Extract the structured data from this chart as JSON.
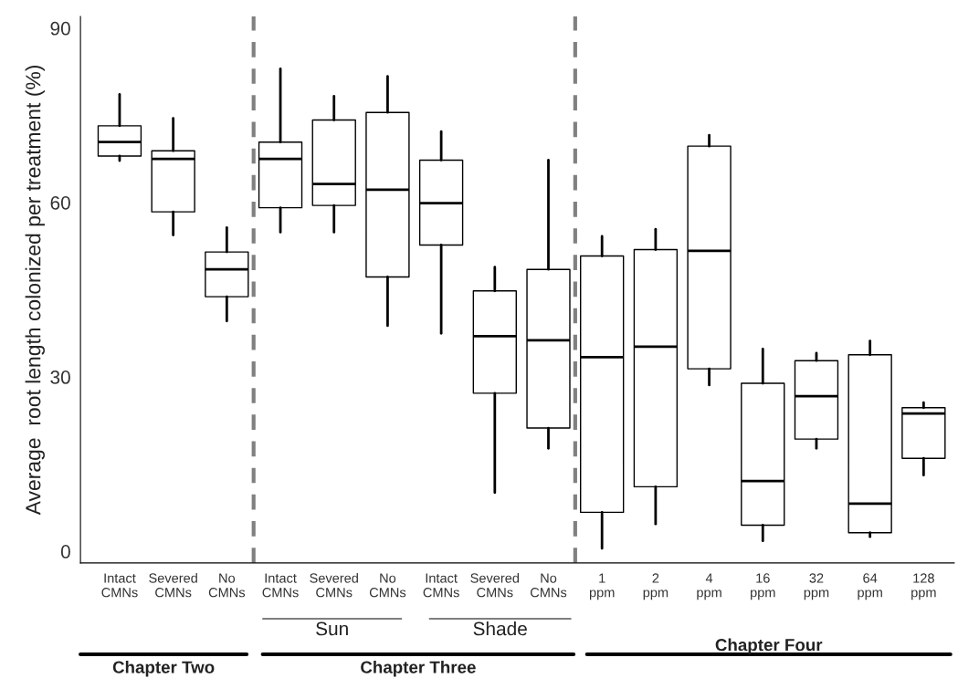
{
  "chart_data": {
    "type": "box",
    "ylabel": "Average  root length colonized per treatment (%)",
    "categories": [
      "Intact\nCMNs",
      "Severed\nCMNs",
      "No\nCMNs",
      "Intact\nCMNs",
      "Severed\nCMNs",
      "No\nCMNs",
      "Intact\nCMNs",
      "Severed\nCMNs",
      "No\nCMNs",
      "1\nppm",
      "2\nppm",
      "4\nppm",
      "16\nppm",
      "32\nppm",
      "64\nppm",
      "128\nppm"
    ],
    "boxes": [
      {
        "low": 67.2,
        "q1": 68.0,
        "median": 70.4,
        "q3": 73.2,
        "high": 78.6
      },
      {
        "low": 54.4,
        "q1": 58.4,
        "median": 67.5,
        "q3": 68.9,
        "high": 74.5
      },
      {
        "low": 39.6,
        "q1": 43.8,
        "median": 48.5,
        "q3": 51.5,
        "high": 55.7
      },
      {
        "low": 54.9,
        "q1": 59.1,
        "median": 67.5,
        "q3": 70.4,
        "high": 83.0
      },
      {
        "low": 54.9,
        "q1": 59.5,
        "median": 63.2,
        "q3": 74.2,
        "high": 78.3
      },
      {
        "low": 38.8,
        "q1": 47.2,
        "median": 62.2,
        "q3": 75.5,
        "high": 81.7
      },
      {
        "low": 37.5,
        "q1": 52.7,
        "median": 59.9,
        "q3": 67.3,
        "high": 72.2
      },
      {
        "low": 10.1,
        "q1": 27.2,
        "median": 37.0,
        "q3": 44.8,
        "high": 48.9
      },
      {
        "low": 17.7,
        "q1": 21.2,
        "median": 36.3,
        "q3": 48.5,
        "high": 67.3
      },
      {
        "low": 0.5,
        "q1": 6.7,
        "median": 33.4,
        "q3": 50.8,
        "high": 54.2
      },
      {
        "low": 4.7,
        "q1": 11.1,
        "median": 35.2,
        "q3": 51.9,
        "high": 55.4
      },
      {
        "low": 28.6,
        "q1": 31.4,
        "median": 51.7,
        "q3": 69.7,
        "high": 71.6
      },
      {
        "low": 1.8,
        "q1": 4.5,
        "median": 12.1,
        "q3": 28.9,
        "high": 34.8
      },
      {
        "low": 17.7,
        "q1": 19.3,
        "median": 26.7,
        "q3": 32.8,
        "high": 34.1
      },
      {
        "low": 2.5,
        "q1": 3.2,
        "median": 8.2,
        "q3": 33.8,
        "high": 36.2
      },
      {
        "low": 13.1,
        "q1": 16.0,
        "median": 23.7,
        "q3": 24.7,
        "high": 25.6
      }
    ],
    "ylim": [
      -2,
      92
    ],
    "yticks": [
      0,
      30,
      60,
      90
    ],
    "grid": false,
    "annotations": [
      "Sun",
      "Shade",
      "Chapter Two",
      "Chapter Three",
      "Chapter Four"
    ]
  }
}
